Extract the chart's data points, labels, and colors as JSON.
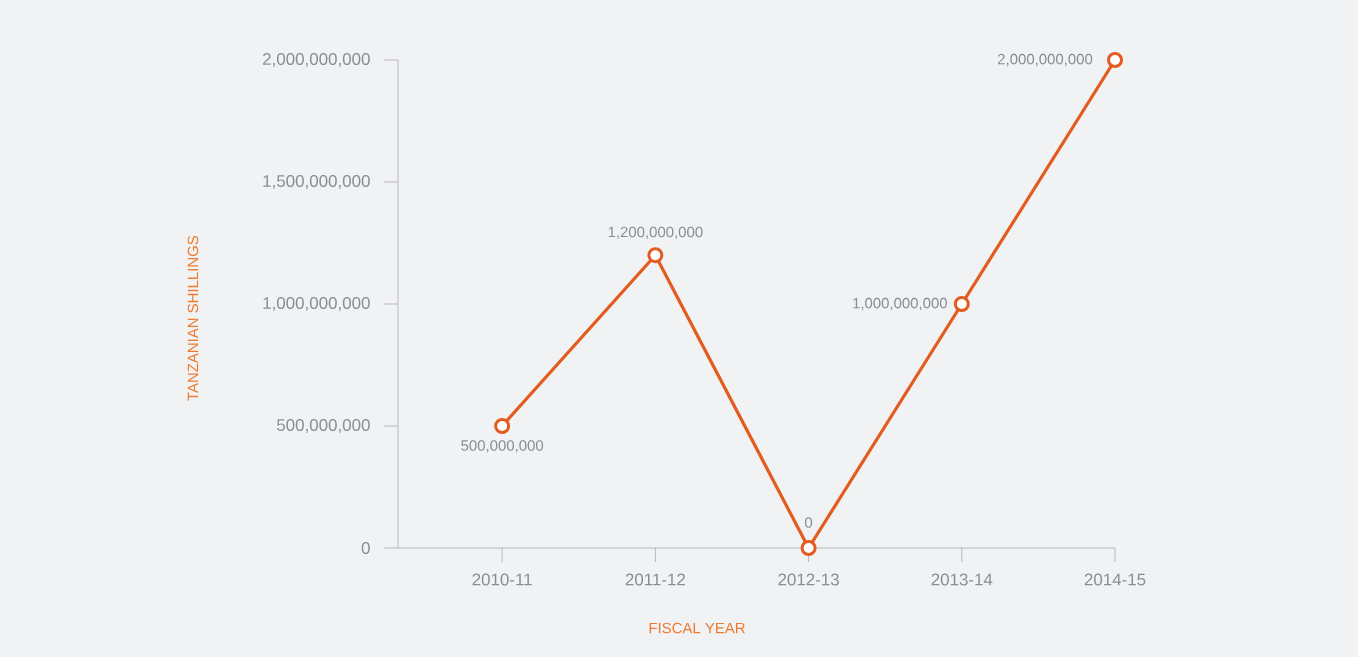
{
  "chart_data": {
    "type": "line",
    "xlabel": "FISCAL YEAR",
    "ylabel": "TANZANIAN SHILLINGS",
    "categories": [
      "2010-11",
      "2011-12",
      "2012-13",
      "2013-14",
      "2014-15"
    ],
    "series": [
      {
        "color": "#e35b1f",
        "values": [
          500000000,
          1200000000,
          0,
          1000000000,
          2000000000
        ],
        "value_labels": [
          "500,000,000",
          "1,200,000,000",
          "0",
          "1,000,000,000",
          "2,000,000,000"
        ]
      }
    ],
    "ylim": [
      0,
      2000000000
    ],
    "yticks": [
      {
        "value": 0,
        "label": "0"
      },
      {
        "value": 500000000,
        "label": "500,000,000"
      },
      {
        "value": 1000000000,
        "label": "1,000,000,000"
      },
      {
        "value": 1500000000,
        "label": "1,500,000,000"
      },
      {
        "value": 2000000000,
        "label": "2,000,000,000"
      }
    ],
    "grid": false,
    "marker": "circle",
    "line_style": "solid"
  }
}
